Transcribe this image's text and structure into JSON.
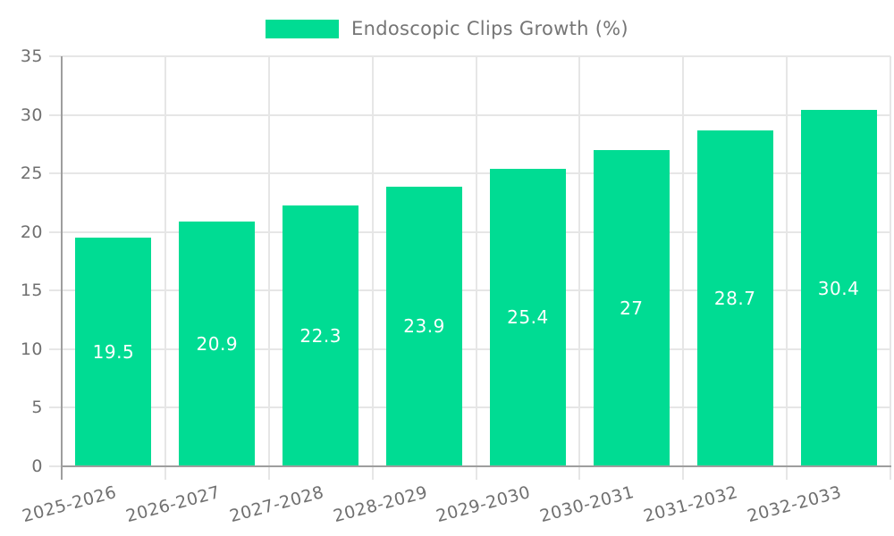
{
  "chart_data": {
    "type": "bar",
    "title": "",
    "categories": [
      "2025-2026",
      "2026-2027",
      "2027-2028",
      "2028-2029",
      "2029-2030",
      "2030-2031",
      "2031-2032",
      "2032-2033"
    ],
    "series": [
      {
        "name": "Endoscopic Clips Growth (%)",
        "values": [
          19.5,
          20.9,
          22.3,
          23.9,
          25.4,
          27,
          28.7,
          30.4
        ]
      }
    ],
    "value_labels": [
      "19.5",
      "20.9",
      "22.3",
      "23.9",
      "25.4",
      "27",
      "28.7",
      "30.4"
    ],
    "xlabel": "",
    "ylabel": "",
    "ylim": [
      0,
      35
    ],
    "y_ticks": [
      0,
      5,
      10,
      15,
      20,
      25,
      30,
      35
    ],
    "grid": "on (horizontal and vertical light gray lines)",
    "legend_position": "top-center",
    "value_label_position": "inside-middle"
  },
  "colors": {
    "bar": "#00DC93",
    "axis": "#9E9E9E",
    "grid": "#E6E6E6",
    "tick_label": "#707070",
    "legend_text": "#757575",
    "value_label": "#FFFFFF",
    "background": "#FFFFFF"
  }
}
